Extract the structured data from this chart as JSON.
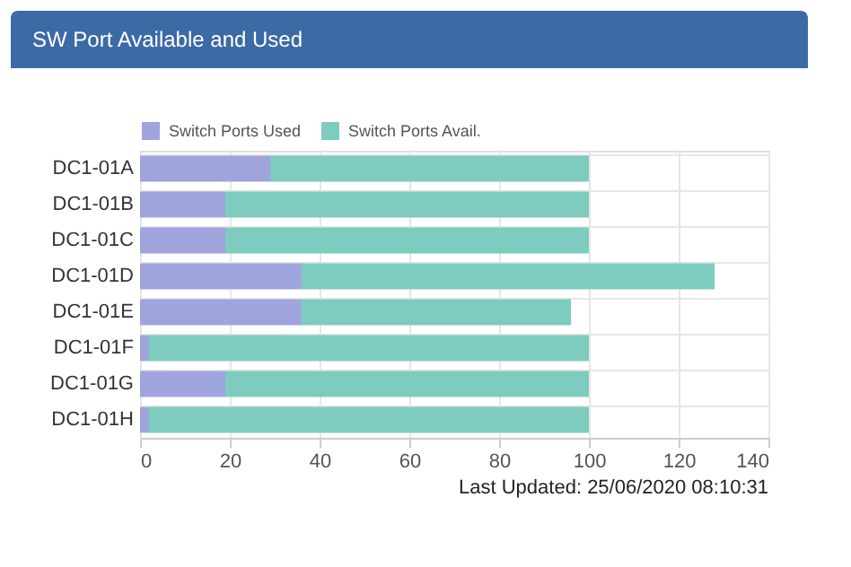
{
  "chart_data": {
    "type": "bar",
    "orientation": "horizontal",
    "stacked": true,
    "title": "SW Port Available and Used",
    "categories": [
      "DC1-01A",
      "DC1-01B",
      "DC1-01C",
      "DC1-01D",
      "DC1-01E",
      "DC1-01F",
      "DC1-01G",
      "DC1-01H"
    ],
    "series": [
      {
        "name": "Switch Ports Used",
        "color": "#9fa5dc",
        "values": [
          29,
          19,
          19,
          36,
          36,
          2,
          19,
          2
        ]
      },
      {
        "name": "Switch Ports Avail.",
        "color": "#7ecbbf",
        "values": [
          71,
          81,
          81,
          92,
          60,
          98,
          81,
          98
        ]
      }
    ],
    "xlim": [
      0,
      140
    ],
    "xticks": [
      0,
      20,
      40,
      60,
      80,
      100,
      120,
      140
    ],
    "grid": true,
    "legend": "top",
    "annotations": [
      "Last Updated: 25/06/2020 08:10:31"
    ]
  }
}
